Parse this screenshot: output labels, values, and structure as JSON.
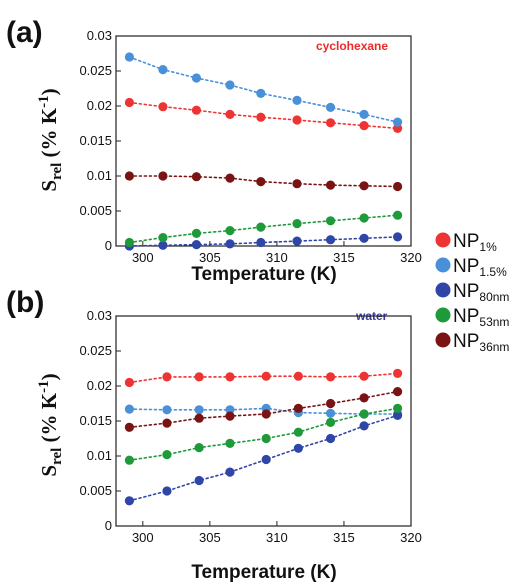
{
  "chart_data": [
    {
      "type": "scatter",
      "panel_label": "(a)",
      "annotation": "cyclohexane",
      "annotation_color": "#ee2a2a",
      "xlabel": "Temperature (K)",
      "ylabel_main": "S",
      "ylabel_sub": "rel",
      "ylabel_unit": " (% K",
      "ylabel_exp": "-1",
      "ylabel_close": ")",
      "xlim": [
        298,
        320
      ],
      "ylim": [
        0,
        0.03
      ],
      "xticks": [
        300,
        305,
        310,
        315,
        320
      ],
      "xtick_labels": [
        "300",
        "305",
        "310",
        "315",
        "320"
      ],
      "yticks": [
        0,
        0.005,
        0.01,
        0.015,
        0.02,
        0.025,
        0.03
      ],
      "ytick_labels": [
        "0",
        "0.005",
        "0.01",
        "0.015",
        "0.02",
        "0.025",
        "0.03"
      ],
      "x": [
        299,
        301.5,
        304,
        306.5,
        308.8,
        311.5,
        314,
        316.5,
        319
      ],
      "series": [
        {
          "name": "NP1%",
          "color": "#ee3333",
          "values": [
            0.0205,
            0.0199,
            0.0194,
            0.0188,
            0.0184,
            0.018,
            0.0176,
            0.0172,
            0.0168
          ]
        },
        {
          "name": "NP1.5%",
          "color": "#4a90d9",
          "values": [
            0.027,
            0.0252,
            0.024,
            0.023,
            0.0218,
            0.0208,
            0.0198,
            0.0188,
            0.0177
          ]
        },
        {
          "name": "NP80nm",
          "color": "#2f46a8",
          "values": [
            0.0,
            0.0001,
            0.0002,
            0.0003,
            0.0005,
            0.0007,
            0.0009,
            0.0011,
            0.0013
          ]
        },
        {
          "name": "NP53nm",
          "color": "#1e9a3a",
          "values": [
            0.0005,
            0.0012,
            0.0018,
            0.0022,
            0.0027,
            0.0032,
            0.0036,
            0.004,
            0.0044
          ]
        },
        {
          "name": "NP36nm",
          "color": "#7a1414",
          "values": [
            0.01,
            0.01,
            0.0099,
            0.0097,
            0.0092,
            0.0089,
            0.0087,
            0.0086,
            0.0085
          ]
        }
      ]
    },
    {
      "type": "scatter",
      "panel_label": "(b)",
      "annotation": "water",
      "annotation_color": "#3b3b9e",
      "xlabel": "Temperature (K)",
      "ylabel_main": "S",
      "ylabel_sub": "rel",
      "ylabel_unit": " (% K",
      "ylabel_exp": "-1",
      "ylabel_close": ")",
      "xlim": [
        298,
        320
      ],
      "ylim": [
        0,
        0.03
      ],
      "xticks": [
        300,
        305,
        310,
        315,
        320
      ],
      "xtick_labels": [
        "300",
        "305",
        "310",
        "315",
        "320"
      ],
      "yticks": [
        0,
        0.005,
        0.01,
        0.015,
        0.02,
        0.025,
        0.03
      ],
      "ytick_labels": [
        "0",
        "0.005",
        "0.01",
        "0.015",
        "0.02",
        "0.025",
        "0.03"
      ],
      "x": [
        299,
        301.8,
        304.2,
        306.5,
        309.2,
        311.6,
        314,
        316.5,
        319
      ],
      "series": [
        {
          "name": "NP1%",
          "color": "#ee3333",
          "values": [
            0.0205,
            0.0213,
            0.0213,
            0.0213,
            0.0214,
            0.0214,
            0.0213,
            0.0214,
            0.0218
          ]
        },
        {
          "name": "NP1.5%",
          "color": "#4a90d9",
          "values": [
            0.0167,
            0.0166,
            0.0166,
            0.0166,
            0.0168,
            0.0162,
            0.0161,
            0.016,
            0.016
          ]
        },
        {
          "name": "NP80nm",
          "color": "#2f46a8",
          "values": [
            0.0036,
            0.005,
            0.0065,
            0.0077,
            0.0095,
            0.0111,
            0.0125,
            0.0143,
            0.0158
          ]
        },
        {
          "name": "NP53nm",
          "color": "#1e9a3a",
          "values": [
            0.0094,
            0.0102,
            0.0112,
            0.0118,
            0.0125,
            0.0134,
            0.0148,
            0.016,
            0.0168
          ]
        },
        {
          "name": "NP36nm",
          "color": "#7a1414",
          "values": [
            0.0141,
            0.0147,
            0.0154,
            0.0157,
            0.016,
            0.0168,
            0.0175,
            0.0183,
            0.0192
          ]
        }
      ]
    }
  ],
  "legend": [
    {
      "base": "NP",
      "sub": "1%",
      "color": "#ee3333"
    },
    {
      "base": "NP",
      "sub": "1.5%",
      "color": "#4a90d9"
    },
    {
      "base": "NP",
      "sub": "80nm",
      "color": "#2f46a8"
    },
    {
      "base": "NP",
      "sub": "53nm",
      "color": "#1e9a3a"
    },
    {
      "base": "NP",
      "sub": "36nm",
      "color": "#7a1414"
    }
  ]
}
